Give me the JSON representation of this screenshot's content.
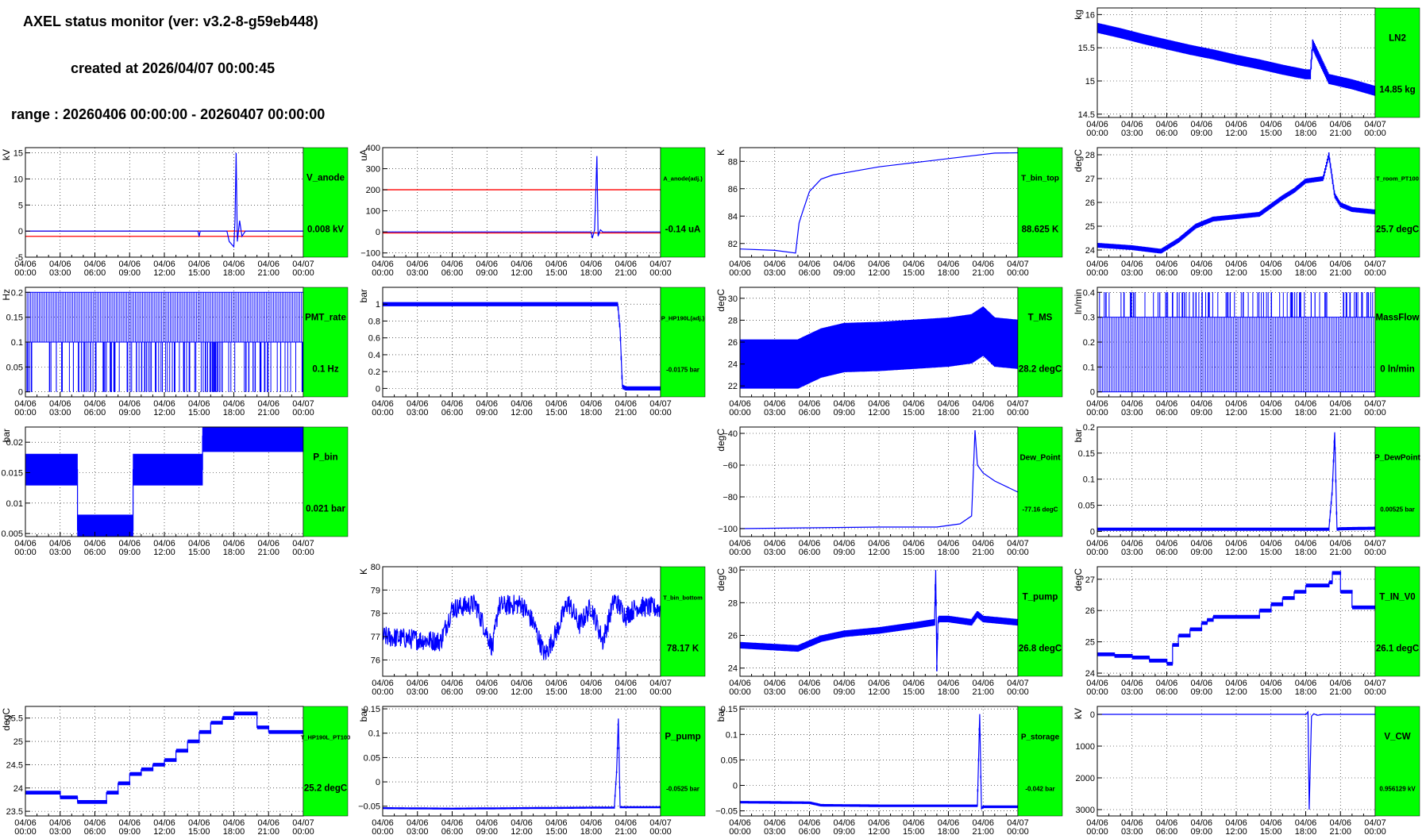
{
  "header": {
    "title": "AXEL status monitor (ver: v3.2-8-g59eb448)",
    "created": "created at 2026/04/07 00:00:45",
    "range": "range : 20260406 00:00:00 - 20260407 00:00:00"
  },
  "colors": {
    "line": "#0000ff",
    "threshold": "#ff0000",
    "box": "#00ff00",
    "grid": "#000000"
  },
  "time_ticks": [
    "04/06 00:00",
    "04/06 03:00",
    "04/06 06:00",
    "04/06 09:00",
    "04/06 12:00",
    "04/06 15:00",
    "04/06 18:00",
    "04/06 21:00",
    "04/07 00:00"
  ],
  "chart_data": [
    {
      "id": "LN2",
      "type": "line",
      "ylabel": "kg",
      "ylim": [
        14.45,
        16.1
      ],
      "yticks": [
        14.5,
        15,
        15.5,
        16
      ],
      "ytick_labels": [
        "14.5",
        "15",
        "15.5",
        "16"
      ],
      "box_name": "LN2",
      "box_value": "14.85 kg",
      "x": [
        0,
        2,
        4,
        6,
        8,
        10,
        12,
        14,
        16,
        18,
        18.4,
        18.6,
        20,
        22,
        24
      ],
      "y": [
        15.8,
        15.72,
        15.63,
        15.55,
        15.47,
        15.4,
        15.32,
        15.25,
        15.17,
        15.1,
        15.1,
        15.55,
        15.03,
        14.95,
        14.85
      ],
      "band": 0.15
    },
    {
      "id": "V_anode",
      "type": "line",
      "ylabel": "kV",
      "ylim": [
        -5,
        16
      ],
      "yticks": [
        -5,
        0,
        5,
        10,
        15
      ],
      "ytick_labels": [
        "-5",
        "0",
        "5",
        "10",
        "15"
      ],
      "box_name": "V_anode",
      "box_value": "0.008 kV",
      "hlines": [
        -1,
        0
      ],
      "x": [
        0,
        14.9,
        15,
        15.1,
        15.5,
        17.4,
        17.6,
        18.0,
        18.1,
        18.2,
        18.3,
        18.5,
        18.7,
        19,
        24
      ],
      "y": [
        0,
        0,
        -1,
        0,
        0,
        0,
        -2,
        -3,
        2,
        15,
        -2,
        2,
        -1,
        0,
        0
      ]
    },
    {
      "id": "A_anode",
      "type": "line",
      "ylabel": "uA",
      "ylim": [
        -120,
        400
      ],
      "yticks": [
        -100,
        0,
        100,
        200,
        300,
        400
      ],
      "ytick_labels": [
        "−100",
        "0",
        "100",
        "200",
        "300",
        "400"
      ],
      "box_name": "A_anode(adj.)",
      "box_value": "-0.14 uA",
      "hlines": [
        200,
        -5
      ],
      "x": [
        0,
        18.0,
        18.1,
        18.3,
        18.5,
        18.6,
        18.8,
        19,
        24
      ],
      "y": [
        0,
        0,
        -30,
        10,
        360,
        -20,
        10,
        0,
        0
      ]
    },
    {
      "id": "T_bin_top",
      "type": "line",
      "ylabel": "K",
      "ylim": [
        81,
        89
      ],
      "yticks": [
        82,
        84,
        86,
        88
      ],
      "ytick_labels": [
        "82",
        "84",
        "86",
        "88"
      ],
      "box_name": "T_bin_top",
      "box_value": "88.625 K",
      "x": [
        0,
        3,
        4.8,
        5.1,
        5.4,
        6,
        7,
        8,
        10,
        12,
        14,
        16,
        18,
        20,
        22,
        24
      ],
      "y": [
        81.6,
        81.5,
        81.3,
        83.5,
        84.3,
        85.8,
        86.7,
        87.0,
        87.3,
        87.6,
        87.8,
        88.0,
        88.2,
        88.4,
        88.6,
        88.625
      ]
    },
    {
      "id": "T_room_PT100",
      "type": "line",
      "ylabel": "degC",
      "ylim": [
        23.7,
        28.3
      ],
      "yticks": [
        24,
        25,
        26,
        27,
        28
      ],
      "ytick_labels": [
        "24",
        "25",
        "26",
        "27",
        "28"
      ],
      "box_name": "T_room_PT100",
      "box_value": "25.7 degC",
      "x": [
        0,
        3,
        5.5,
        7,
        8.5,
        10,
        12,
        14,
        16,
        17,
        18,
        19.5,
        20,
        20.5,
        21,
        22,
        24
      ],
      "y": [
        24.2,
        24.1,
        23.95,
        24.4,
        25.0,
        25.3,
        25.4,
        25.5,
        26.2,
        26.5,
        26.9,
        27.0,
        28.0,
        26.3,
        25.9,
        25.7,
        25.6
      ],
      "band": 0.2
    },
    {
      "id": "PMT_rate",
      "type": "binary",
      "ylabel": "Hz",
      "ylim": [
        -0.01,
        0.21
      ],
      "yticks": [
        0,
        0.05,
        0.1,
        0.15,
        0.2
      ],
      "ytick_labels": [
        "0",
        "0.05",
        "0.1",
        "0.15",
        "0.2"
      ],
      "box_name": "PMT_rate",
      "box_value": "0.1 Hz",
      "levels": [
        0.1,
        0.2
      ],
      "spikes_to": 0,
      "spike_density": 70
    },
    {
      "id": "P_HP190L",
      "type": "line",
      "ylabel": "bar",
      "ylim": [
        -0.1,
        1.2
      ],
      "yticks": [
        0,
        0.2,
        0.4,
        0.6,
        0.8,
        1
      ],
      "ytick_labels": [
        "0",
        "0.2",
        "0.4",
        "0.6",
        "0.8",
        "1"
      ],
      "box_name": "P_HP190L(adj.)",
      "box_value": "-0.0175 bar",
      "x": [
        0,
        20.3,
        20.5,
        20.7,
        21,
        24
      ],
      "y": [
        1.0,
        1.0,
        0.7,
        0.02,
        0.0,
        0.0
      ],
      "band": 0.05
    },
    {
      "id": "T_MS",
      "type": "line",
      "ylabel": "degC",
      "ylim": [
        21,
        31
      ],
      "yticks": [
        22,
        24,
        26,
        28,
        30
      ],
      "ytick_labels": [
        "22",
        "24",
        "26",
        "28",
        "30"
      ],
      "box_name": "T_MS",
      "box_value": "28.2 degC",
      "x": [
        0,
        5,
        6,
        7,
        9,
        12,
        15,
        18,
        20,
        21,
        22,
        24
      ],
      "y": [
        24,
        24,
        24.5,
        25,
        25.5,
        25.6,
        25.8,
        26,
        26.3,
        27,
        26,
        25.8
      ],
      "band": 4.5
    },
    {
      "id": "MassFlow",
      "type": "binary",
      "ylabel": "ln/min",
      "ylim": [
        -0.02,
        0.42
      ],
      "yticks": [
        0,
        0.1,
        0.2,
        0.3,
        0.4
      ],
      "ytick_labels": [
        "0",
        "0.1",
        "0.2",
        "0.3",
        "0.4"
      ],
      "box_name": "MassFlow",
      "box_value": "0 ln/min",
      "levels": [
        0,
        0.3
      ],
      "spikes_to": 0.4,
      "spike_density": 55
    },
    {
      "id": "P_bin",
      "type": "step",
      "ylabel": "bar",
      "ylim": [
        0.0045,
        0.0225
      ],
      "yticks": [
        0.005,
        0.01,
        0.015,
        0.02
      ],
      "ytick_labels": [
        "0.005",
        "0.01",
        "0.015",
        "0.02"
      ],
      "box_name": "P_bin",
      "box_value": "0.021 bar",
      "x": [
        0,
        3.2,
        4.5,
        8.7,
        9.3,
        14.8,
        15.3,
        24
      ],
      "y": [
        0.0155,
        0.0155,
        0.0055,
        0.0055,
        0.0155,
        0.0155,
        0.021,
        0.021
      ],
      "band": 0.0052
    },
    {
      "id": "Dew_Point",
      "type": "line",
      "ylabel": "degC",
      "ylim": [
        -105,
        -36
      ],
      "yticks": [
        -100,
        -80,
        -60,
        -40
      ],
      "ytick_labels": [
        "−100",
        "−80",
        "−60",
        "−40"
      ],
      "box_name": "Dew_Point",
      "box_value": "-77.16 degC",
      "x": [
        0,
        6,
        12,
        17,
        19,
        20,
        20.3,
        20.5,
        21,
        22,
        24
      ],
      "y": [
        -100,
        -99.5,
        -99,
        -99,
        -97,
        -92,
        -38,
        -60,
        -65,
        -70,
        -77
      ]
    },
    {
      "id": "P_DewPoint",
      "type": "line",
      "ylabel": "bar",
      "ylim": [
        -0.01,
        0.2
      ],
      "yticks": [
        0,
        0.05,
        0.1,
        0.15,
        0.2
      ],
      "ytick_labels": [
        "0",
        "0.05",
        "0.1",
        "0.15",
        "0.2"
      ],
      "box_name": "P_DewPoint",
      "box_value": "0.00525 bar",
      "x": [
        0,
        20,
        20.3,
        20.5,
        20.7,
        21,
        24
      ],
      "y": [
        0.004,
        0.004,
        0.08,
        0.19,
        0.004,
        0.005,
        0.006
      ],
      "band": 0.006
    },
    {
      "id": "T_bin_bottom",
      "type": "noisy",
      "ylabel": "K",
      "ylim": [
        75.3,
        80
      ],
      "yticks": [
        76,
        77,
        78,
        79,
        80
      ],
      "ytick_labels": [
        "76",
        "77",
        "78",
        "79",
        "80"
      ],
      "box_name": "T_bin_bottom",
      "box_value": "78.17 K",
      "x": [
        0,
        5,
        6,
        8,
        9.5,
        10,
        12,
        13,
        14,
        15,
        16,
        17,
        18,
        19,
        20,
        21,
        22,
        24
      ],
      "y": [
        77,
        76.8,
        78.2,
        78.4,
        76.5,
        78.3,
        78.4,
        77.6,
        76.2,
        77.2,
        78.5,
        77.5,
        78.3,
        76.8,
        78.6,
        77.9,
        78.3,
        78.2
      ],
      "amp": 0.45
    },
    {
      "id": "T_pump",
      "type": "line",
      "ylabel": "degC",
      "ylim": [
        23.5,
        30.2
      ],
      "yticks": [
        24,
        26,
        28,
        30
      ],
      "ytick_labels": [
        "24",
        "26",
        "28",
        "30"
      ],
      "box_name": "T_pump",
      "box_value": "26.8 degC",
      "x": [
        0,
        5,
        7,
        9,
        12,
        15,
        16.8,
        16.9,
        17.0,
        17.1,
        17.2,
        18,
        20,
        20.5,
        21,
        24
      ],
      "y": [
        25.4,
        25.2,
        25.8,
        26.1,
        26.3,
        26.6,
        26.8,
        30,
        24,
        26.9,
        27.0,
        27.0,
        26.8,
        27.3,
        27.0,
        26.8
      ],
      "band": 0.4
    },
    {
      "id": "T_IN_V0",
      "type": "step",
      "ylabel": "degC",
      "ylim": [
        23.9,
        27.4
      ],
      "yticks": [
        24,
        25,
        26,
        27
      ],
      "ytick_labels": [
        "24",
        "25",
        "26",
        "27"
      ],
      "box_name": "T_IN_V0",
      "box_value": "26.1 degC",
      "x": [
        0,
        1.5,
        3,
        4.5,
        6,
        6.5,
        7,
        8,
        9,
        9.5,
        10,
        11,
        14,
        15,
        16,
        17,
        18,
        20,
        20.3,
        21,
        22,
        24
      ],
      "y": [
        24.6,
        24.55,
        24.5,
        24.4,
        24.3,
        24.9,
        25.2,
        25.4,
        25.6,
        25.7,
        25.8,
        25.8,
        26.0,
        26.2,
        26.4,
        26.6,
        26.8,
        26.9,
        27.2,
        26.6,
        26.1,
        26.0
      ],
      "band": 0.12
    },
    {
      "id": "T_HP190L_PT100",
      "type": "step",
      "ylabel": "degC",
      "ylim": [
        23.4,
        25.75
      ],
      "yticks": [
        23.5,
        24,
        24.5,
        25,
        25.5
      ],
      "ytick_labels": [
        "23.5",
        "24",
        "24.5",
        "25",
        "25.5"
      ],
      "box_name": "T_HP190L_PT100",
      "box_value": "25.2 degC",
      "x": [
        0,
        3,
        4.5,
        6.5,
        7,
        8,
        9,
        10,
        11,
        12,
        13,
        14,
        15,
        16,
        17,
        18,
        19,
        20,
        21,
        22,
        24
      ],
      "y": [
        23.9,
        23.8,
        23.7,
        23.7,
        23.9,
        24.1,
        24.3,
        24.4,
        24.5,
        24.6,
        24.8,
        25.0,
        25.2,
        25.4,
        25.5,
        25.6,
        25.6,
        25.3,
        25.2,
        25.2,
        25.2
      ],
      "band": 0.08
    },
    {
      "id": "P_pump",
      "type": "line",
      "ylabel": "bar",
      "ylim": [
        -0.07,
        0.155
      ],
      "yticks": [
        -0.05,
        0,
        0.05,
        0.1,
        0.15
      ],
      "ytick_labels": [
        "−0.05",
        "0",
        "0.05",
        "0.1",
        "0.15"
      ],
      "box_name": "P_pump",
      "box_value": "-0.0525 bar",
      "x": [
        0,
        6,
        12,
        18,
        20,
        20.2,
        20.35,
        20.5,
        24
      ],
      "y": [
        -0.054,
        -0.055,
        -0.054,
        -0.053,
        -0.053,
        0.02,
        0.13,
        -0.052,
        -0.052
      ],
      "band": 0.004
    },
    {
      "id": "P_storage",
      "type": "line",
      "ylabel": "bar",
      "ylim": [
        -0.06,
        0.155
      ],
      "yticks": [
        -0.05,
        0,
        0.05,
        0.1,
        0.15
      ],
      "ytick_labels": [
        "−0.05",
        "0",
        "0.05",
        "0.1",
        "0.15"
      ],
      "box_name": "P_storage",
      "box_value": "-0.042 bar",
      "x": [
        0,
        6,
        7,
        12,
        18,
        20.5,
        20.7,
        20.85,
        21,
        24
      ],
      "y": [
        -0.033,
        -0.034,
        -0.039,
        -0.04,
        -0.04,
        -0.04,
        0.14,
        -0.045,
        -0.042,
        -0.042
      ],
      "band": 0.005
    },
    {
      "id": "V_CW",
      "type": "line",
      "ylabel": "kV",
      "ylim": [
        3200,
        -250
      ],
      "yticks": [
        0,
        1000,
        2000,
        3000
      ],
      "ytick_labels": [
        "0",
        "1000",
        "2000",
        "3000"
      ],
      "box_name": "V_CW",
      "box_value": "0.956129 kV",
      "x": [
        0,
        17.9,
        18,
        18.2,
        18.3,
        18.5,
        18.7,
        19,
        19.5,
        24
      ],
      "y": [
        0,
        0,
        10,
        -80,
        3000,
        60,
        -20,
        30,
        0,
        0
      ]
    }
  ]
}
